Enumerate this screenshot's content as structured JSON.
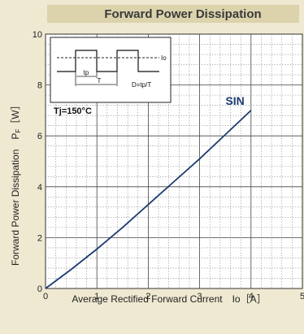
{
  "chart_data": {
    "type": "line",
    "title": "Forward Power Dissipation",
    "xlabel": "Average Rectified Forward Current　Io［A］",
    "ylabel": "Forward Power Dissipation　P",
    "ylabel_sub": "F",
    "ylabel_unit": "［W］",
    "xlim": [
      0,
      5
    ],
    "ylim": [
      0,
      10
    ],
    "x_ticks": [
      "0",
      "1",
      "2",
      "3",
      "4",
      "5"
    ],
    "y_ticks": [
      "0",
      "2",
      "4",
      "6",
      "8",
      "10"
    ],
    "grid": true,
    "series": [
      {
        "name": "SIN",
        "color": "#1d3b6e",
        "x": [
          0,
          0.5,
          1,
          1.5,
          2,
          2.5,
          3,
          3.5,
          4
        ],
        "y": [
          0,
          0.75,
          1.55,
          2.4,
          3.3,
          4.2,
          5.1,
          6.05,
          7.0
        ]
      }
    ],
    "annotations": {
      "inset_io": "Io",
      "inset_tp": "tp",
      "inset_t": "T",
      "inset_duty": "D=tp/T",
      "junction_temp": "Tj=150°C"
    }
  }
}
